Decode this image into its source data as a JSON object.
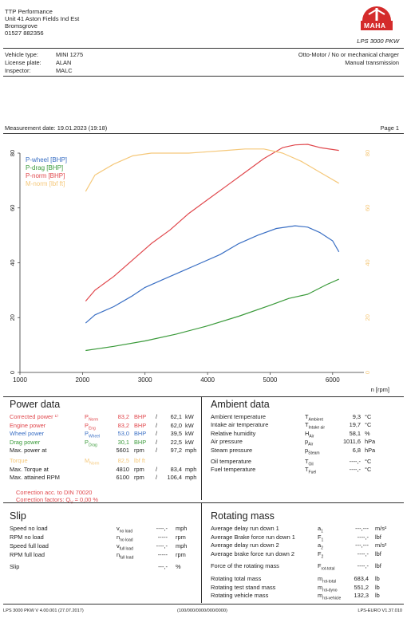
{
  "company": {
    "lines": [
      "TTP Performance",
      "Unit 41 Aston Fields Ind Est",
      "Bromsgrove",
      "01527 882356"
    ]
  },
  "brand": {
    "name": "MAHA",
    "model": "LPS 3000 PKW"
  },
  "vehicle": {
    "type_label": "Vehicle type:",
    "type_value": "MINI 1275",
    "plate_label": "License plate:",
    "plate_value": "ALAN",
    "inspector_label": "Inspector:",
    "inspector_value": "MALC",
    "engine_desc": "Otto-Motor / No or mechanical charger",
    "transmission": "Manual transmission"
  },
  "measurement": {
    "date_label": "Measurement date: 19.01.2023 (19:18)",
    "page": "Page 1"
  },
  "chart_data": {
    "type": "line",
    "xlabel": "n [rpm]",
    "xticks": [
      1000,
      2000,
      3000,
      4000,
      5000,
      6000
    ],
    "yticks_left": [
      0,
      20,
      40,
      60,
      80
    ],
    "yticks_right": [
      0,
      20,
      40,
      60,
      80
    ],
    "xlim": [
      1000,
      6500
    ],
    "ylim": [
      0,
      80
    ],
    "legend_position": "top-left",
    "grid": false,
    "series": [
      {
        "name": "P-wheel [BHP]",
        "color": "#3a6fc4",
        "x": [
          2050,
          2200,
          2500,
          2800,
          3000,
          3300,
          3600,
          3900,
          4200,
          4500,
          4800,
          5100,
          5400,
          5600,
          5800,
          6000,
          6100
        ],
        "y": [
          18,
          21,
          24,
          28,
          31,
          34,
          37,
          40,
          43,
          47,
          50,
          52.5,
          53.5,
          53,
          51,
          48,
          44
        ]
      },
      {
        "name": "P-drag [BHP]",
        "color": "#3a9a3a",
        "x": [
          2050,
          2500,
          3000,
          3500,
          4000,
          4500,
          5000,
          5300,
          5600,
          5900,
          6100
        ],
        "y": [
          8,
          9.5,
          11.5,
          14,
          17,
          20.5,
          24.5,
          27,
          28.5,
          32,
          34
        ]
      },
      {
        "name": "P-norm [BHP]",
        "color": "#e0474c",
        "x": [
          2050,
          2200,
          2500,
          2800,
          3100,
          3400,
          3700,
          4000,
          4300,
          4600,
          4900,
          5200,
          5400,
          5600,
          5800,
          6100
        ],
        "y": [
          26,
          30,
          35,
          41,
          47,
          52,
          58,
          63,
          68,
          73,
          78,
          82,
          83,
          83.2,
          82,
          81
        ]
      },
      {
        "name": "M-norm [lbf ft]",
        "color": "#f5c87a",
        "x": [
          2050,
          2200,
          2500,
          2800,
          3100,
          3400,
          3700,
          4000,
          4300,
          4600,
          4900,
          5200,
          5500,
          5800,
          6100
        ],
        "y": [
          66,
          72,
          76,
          79,
          80,
          80,
          80,
          80.5,
          81,
          81.5,
          81.5,
          80,
          77,
          73,
          69
        ]
      }
    ]
  },
  "power": {
    "title": "Power data",
    "rows": [
      {
        "label": "Corrected power ¹⁾",
        "sym": "P",
        "sub": "Norm",
        "v1": "83,2",
        "u1": "BHP",
        "sep": "/",
        "v2": "62,1",
        "u2": "kW",
        "color": "#e0474c"
      },
      {
        "label": "Engine power",
        "sym": "P",
        "sub": "Eng",
        "v1": "83,2",
        "u1": "BHP",
        "sep": "/",
        "v2": "62,0",
        "u2": "kW",
        "color": "#e0474c"
      },
      {
        "label": "Wheel power",
        "sym": "P",
        "sub": "Wheel",
        "v1": "53,0",
        "u1": "BHP",
        "sep": "/",
        "v2": "39,5",
        "u2": "kW",
        "color": "#3a6fc4"
      },
      {
        "label": "Drag power",
        "sym": "P",
        "sub": "Drag",
        "v1": "30,1",
        "u1": "BHP",
        "sep": "/",
        "v2": "22,5",
        "u2": "kW",
        "color": "#3a9a3a"
      },
      {
        "label": "Max. power at",
        "sym": "",
        "sub": "",
        "v1": "5601",
        "u1": "rpm",
        "sep": "/",
        "v2": "97,2",
        "u2": "mph",
        "color": "#222"
      },
      {
        "label": "Torque",
        "sym": "M",
        "sub": "Norm",
        "v1": "82,5",
        "u1": "lbf ft",
        "sep": "",
        "v2": "",
        "u2": "",
        "color": "#f5c87a"
      },
      {
        "label": "Max. Torque at",
        "sym": "",
        "sub": "",
        "v1": "4810",
        "u1": "rpm",
        "sep": "/",
        "v2": "83,4",
        "u2": "mph",
        "color": "#222"
      },
      {
        "label": "Max. attained RPM",
        "sym": "",
        "sub": "",
        "v1": "6100",
        "u1": "rpm",
        "sep": "/",
        "v2": "106,4",
        "u2": "mph",
        "color": "#222"
      }
    ],
    "correction_line1": "Correction acc. to DIN 70020",
    "correction_line2": "Correction factors: Q",
    "correction_sub": "V",
    "correction_value": "= 0,00 %"
  },
  "ambient": {
    "title": "Ambient data",
    "rows": [
      {
        "label": "Ambient temperature",
        "sym": "T",
        "sub": "Ambient",
        "val": "9,3",
        "unit": "°C"
      },
      {
        "label": "Intake air temperature",
        "sym": "T",
        "sub": "Intake air",
        "val": "19,7",
        "unit": "°C"
      },
      {
        "label": "Relative humidity",
        "sym": "H",
        "sub": "Air",
        "val": "58,1",
        "unit": "%"
      },
      {
        "label": "Air pressure",
        "sym": "p",
        "sub": "Air",
        "val": "1011,6",
        "unit": "hPa"
      },
      {
        "label": "Steam pressure",
        "sym": "p",
        "sub": "Steam",
        "val": "6,8",
        "unit": "hPa"
      },
      {
        "label": "Oil temperature",
        "sym": "T",
        "sub": "Oil",
        "val": "----,-",
        "unit": "°C"
      },
      {
        "label": "Fuel temperature",
        "sym": "T",
        "sub": "Fuel",
        "val": "----,-",
        "unit": "°C"
      }
    ]
  },
  "slip": {
    "title": "Slip",
    "rows": [
      {
        "label": "Speed no load",
        "sym": "v",
        "sub": "no load",
        "val": "----,-",
        "unit": "mph"
      },
      {
        "label": "RPM no load",
        "sym": "n",
        "sub": "no load",
        "val": "-----",
        "unit": "rpm"
      },
      {
        "label": "Speed full load",
        "sym": "v",
        "sub": "full load",
        "val": "----,-",
        "unit": "mph"
      },
      {
        "label": "RPM full load",
        "sym": "n",
        "sub": "full load",
        "val": "-----",
        "unit": "rpm"
      },
      {
        "label": "Slip",
        "sym": "",
        "sub": "",
        "val": "---,-",
        "unit": "%"
      }
    ]
  },
  "rotating": {
    "title": "Rotating mass",
    "rows": [
      {
        "label": "Average delay run down 1",
        "sym": "a",
        "sub": "1",
        "val": "---,---",
        "unit": "m/s²"
      },
      {
        "label": "Average Brake force run down 1",
        "sym": "F",
        "sub": "1",
        "val": "----,-",
        "unit": "lbf"
      },
      {
        "label": "Average delay run down 2",
        "sym": "a",
        "sub": "2",
        "val": "---,---",
        "unit": "m/s²"
      },
      {
        "label": "Average brake force run down 2",
        "sym": "F",
        "sub": "2",
        "val": "----,-",
        "unit": "lbf"
      },
      {
        "label": "Force of the rotating mass",
        "sym": "F",
        "sub": "rot-total",
        "val": "----,-",
        "unit": "lbf"
      },
      {
        "label": "Rotating total mass",
        "sym": "m",
        "sub": "rot-total",
        "val": "683,4",
        "unit": "lb"
      },
      {
        "label": "Rotating test stand mass",
        "sym": "m",
        "sub": "rot-dyno",
        "val": "551,2",
        "unit": "lb"
      },
      {
        "label": "Rotating vehicle mass",
        "sym": "m",
        "sub": "rot-vehicle",
        "val": "132,3",
        "unit": "lb"
      }
    ]
  },
  "footer": {
    "left": "LPS 3000 PKW V 4.00.001 (27.07.2017)",
    "center": "(100/000/0000/000/0000)",
    "right": "LPS-EURO V1.37.010"
  }
}
